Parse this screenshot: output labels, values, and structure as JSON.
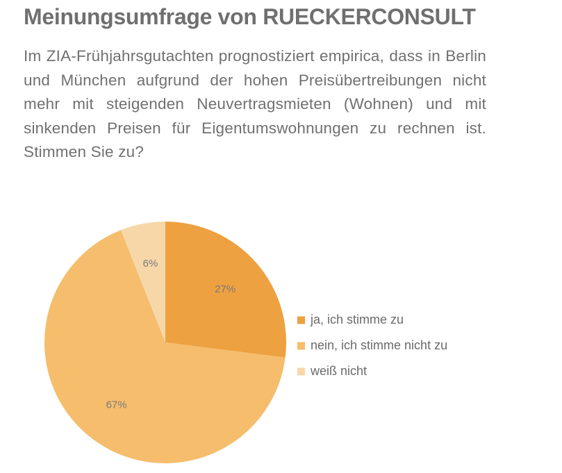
{
  "header": {
    "title": "Meinungsumfrage von RUECKERCONSULT",
    "question": "Im ZIA-Frühjahrsgutachten prognostiziert empirica, dass in Berlin und München aufgrund der hohen Preisübertreibungen nicht mehr mit steigenden Neuvertragsmieten (Wohnen) und mit sinkenden Preisen für Eigentumswohnungen zu rechnen ist. Stimmen Sie zu?"
  },
  "chart_data": {
    "type": "pie",
    "title": "",
    "categories": [
      "ja, ich stimme zu",
      "nein, ich stimme nicht zu",
      "weiß nicht"
    ],
    "values": [
      27,
      67,
      6
    ],
    "labels": [
      "27%",
      "67%",
      "6%"
    ],
    "unit": "%",
    "colors": [
      "#EDA140",
      "#F5BD6C",
      "#F7D7A8"
    ],
    "start_angle_degrees": 0,
    "direction": "clockwise",
    "legend_position": "right"
  }
}
